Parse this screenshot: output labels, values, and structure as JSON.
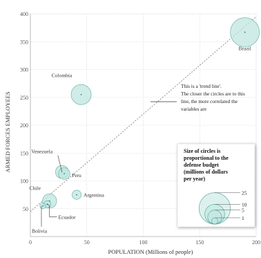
{
  "colors": {
    "bubble_fill": "#bfe6e0",
    "bubble_stroke": "#5fa9a0",
    "grid": "#d2d2d2",
    "trend": "#777777",
    "dot": "#2a7a72"
  },
  "chart_data": {
    "type": "scatter",
    "xlabel": "POPULATION (Millions of people)",
    "ylabel": "ARMED FORCES EMPLOYEES",
    "xlim": [
      0,
      200
    ],
    "ylim": [
      0,
      400
    ],
    "xticks": [
      "0",
      "50",
      "100",
      "150",
      "200"
    ],
    "yticks": [
      "50",
      "100",
      "150",
      "200",
      "250",
      "300",
      "350",
      "400"
    ],
    "grid": true,
    "points": [
      {
        "label": "Brazil",
        "x": 190,
        "y": 367,
        "budget": 25
      },
      {
        "label": "Colombia",
        "x": 45,
        "y": 255,
        "budget": 12
      },
      {
        "label": "Venezuela",
        "x": 28,
        "y": 116,
        "budget": 5
      },
      {
        "label": "Peru",
        "x": 30,
        "y": 113,
        "budget": 4
      },
      {
        "label": "Argentina",
        "x": 41,
        "y": 75,
        "budget": 2.5
      },
      {
        "label": "Chile",
        "x": 17,
        "y": 64,
        "budget": 6
      },
      {
        "label": "Ecuador",
        "x": 15,
        "y": 58,
        "budget": 1.5
      },
      {
        "label": "Bolivia",
        "x": 11,
        "y": 55,
        "budget": 1
      }
    ],
    "trend_line": {
      "x": [
        0,
        200
      ],
      "y": [
        45,
        395
      ]
    },
    "annotation": "This is a 'trend line'. The closer the circles are to this line, the more correlated the variables are",
    "annotation_lines": [
      "This is a 'trend line'.",
      "The closer the circles are to this",
      "line, the more correlated the",
      "variables are"
    ],
    "legend": {
      "title_lines": [
        "Size of circles is",
        "proportional to the",
        "defense budget",
        "(millions of dollars",
        "per year)"
      ],
      "values": [
        25,
        10,
        5,
        1
      ],
      "value_labels": [
        "25",
        "10",
        "5",
        "1"
      ]
    }
  }
}
